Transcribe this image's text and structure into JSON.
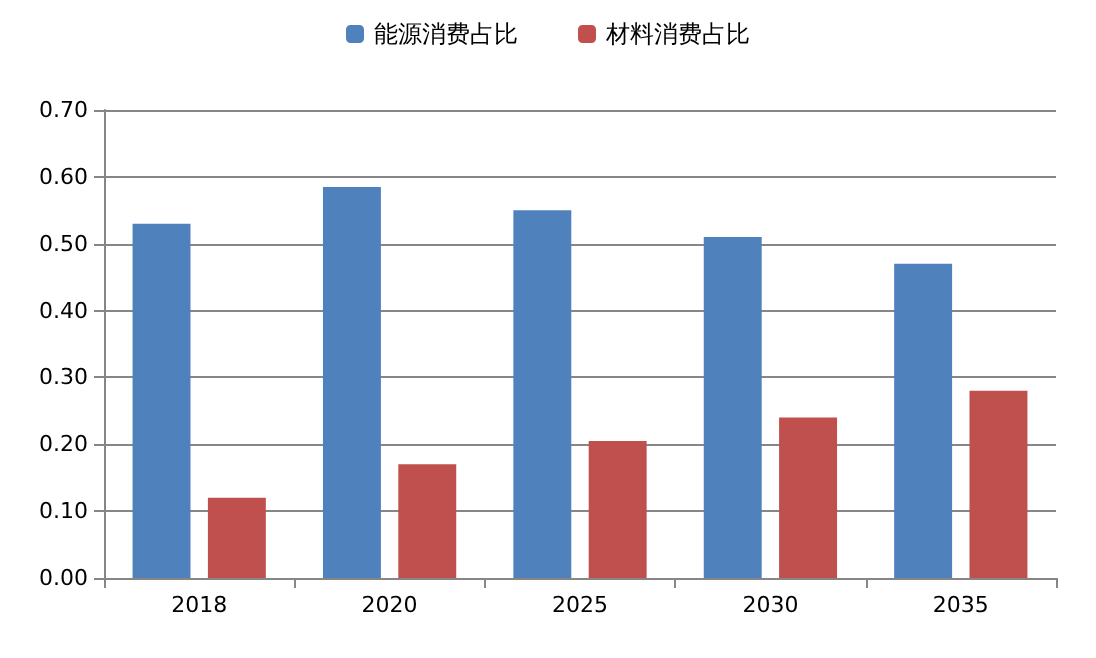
{
  "chart_data": {
    "type": "bar",
    "categories": [
      "2018",
      "2020",
      "2025",
      "2030",
      "2035"
    ],
    "series": [
      {
        "name": "能源消费占比",
        "color": "#4f81bd",
        "values": [
          0.53,
          0.585,
          0.55,
          0.51,
          0.47
        ]
      },
      {
        "name": "材料消费占比",
        "color": "#c0504d",
        "values": [
          0.12,
          0.17,
          0.205,
          0.24,
          0.28
        ]
      }
    ],
    "ylim": [
      0,
      0.7
    ],
    "yticks": [
      {
        "value": 0,
        "label": "0.00"
      },
      {
        "value": 0.1,
        "label": "0.10"
      },
      {
        "value": 0.2,
        "label": "0.20"
      },
      {
        "value": 0.3,
        "label": "0.30"
      },
      {
        "value": 0.4,
        "label": "0.40"
      },
      {
        "value": 0.5,
        "label": "0.50"
      },
      {
        "value": 0.6,
        "label": "0.60"
      },
      {
        "value": 0.7,
        "label": "0.70"
      }
    ],
    "grid": "y",
    "legend": "top"
  }
}
